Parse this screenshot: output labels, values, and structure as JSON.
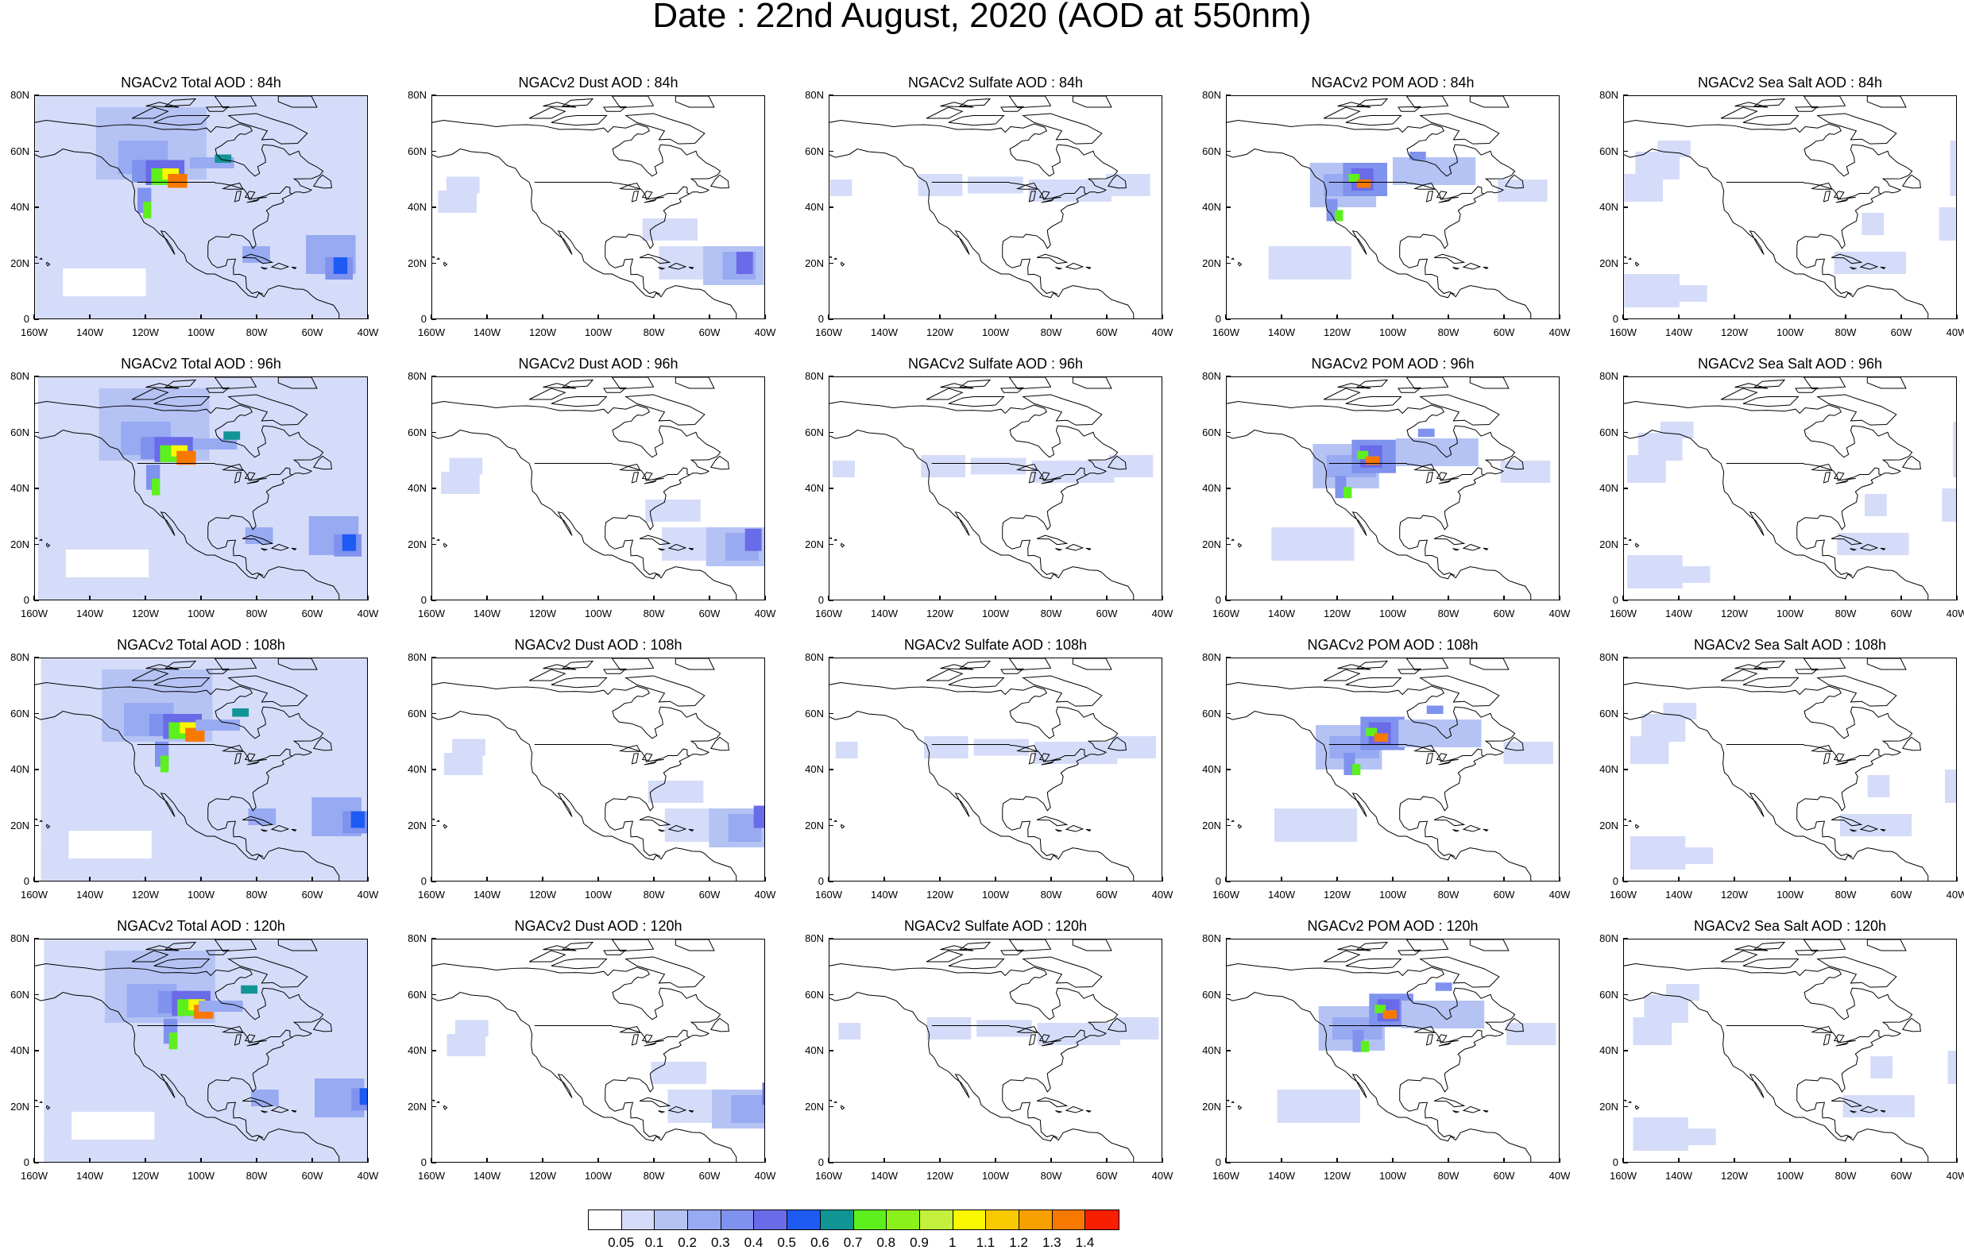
{
  "title": "Date : 22nd August, 2020 (AOD at 550nm)",
  "panels": [
    {
      "title": "NGACv2 Total AOD : 84h",
      "species": "total"
    },
    {
      "title": "NGACv2 Dust AOD : 84h",
      "species": "dust"
    },
    {
      "title": "NGACv2 Sulfate AOD : 84h",
      "species": "sulfate"
    },
    {
      "title": "NGACv2 POM AOD : 84h",
      "species": "pom"
    },
    {
      "title": "NGACv2 Sea Salt AOD : 84h",
      "species": "seasalt"
    },
    {
      "title": "NGACv2 Total AOD : 96h",
      "species": "total"
    },
    {
      "title": "NGACv2 Dust AOD : 96h",
      "species": "dust"
    },
    {
      "title": "NGACv2 Sulfate AOD : 96h",
      "species": "sulfate"
    },
    {
      "title": "NGACv2 POM AOD : 96h",
      "species": "pom"
    },
    {
      "title": "NGACv2 Sea Salt AOD : 96h",
      "species": "seasalt"
    },
    {
      "title": "NGACv2 Total AOD : 108h",
      "species": "total"
    },
    {
      "title": "NGACv2 Dust AOD : 108h",
      "species": "dust"
    },
    {
      "title": "NGACv2 Sulfate AOD : 108h",
      "species": "sulfate"
    },
    {
      "title": "NGACv2 POM AOD : 108h",
      "species": "pom"
    },
    {
      "title": "NGACv2 Sea Salt AOD : 108h",
      "species": "seasalt"
    },
    {
      "title": "NGACv2 Total AOD : 120h",
      "species": "total"
    },
    {
      "title": "NGACv2 Dust AOD : 120h",
      "species": "dust"
    },
    {
      "title": "NGACv2 Sulfate AOD : 120h",
      "species": "sulfate"
    },
    {
      "title": "NGACv2 POM AOD : 120h",
      "species": "pom"
    },
    {
      "title": "NGACv2 Sea Salt  AOD : 120h",
      "species": "seasalt"
    }
  ],
  "axes": {
    "x_ticks": [
      "160W",
      "140W",
      "120W",
      "100W",
      "80W",
      "60W",
      "40W"
    ],
    "y_ticks": [
      "80N",
      "60N",
      "40N",
      "20N",
      "0"
    ]
  },
  "colorbar": {
    "colors": [
      "#ffffff",
      "#d5dcf9",
      "#b5c3f4",
      "#97aaf2",
      "#7f92ee",
      "#6a6be8",
      "#1e5bf5",
      "#119494",
      "#5df01e",
      "#8cf01a",
      "#c2f03c",
      "#f8f800",
      "#f8c800",
      "#f8a000",
      "#f87800",
      "#f81e00"
    ],
    "labels": [
      "0.05",
      "0.1",
      "0.2",
      "0.3",
      "0.4",
      "0.5",
      "0.6",
      "0.7",
      "0.8",
      "0.9",
      "1",
      "1.1",
      "1.2",
      "1.3",
      "1.4"
    ]
  }
}
